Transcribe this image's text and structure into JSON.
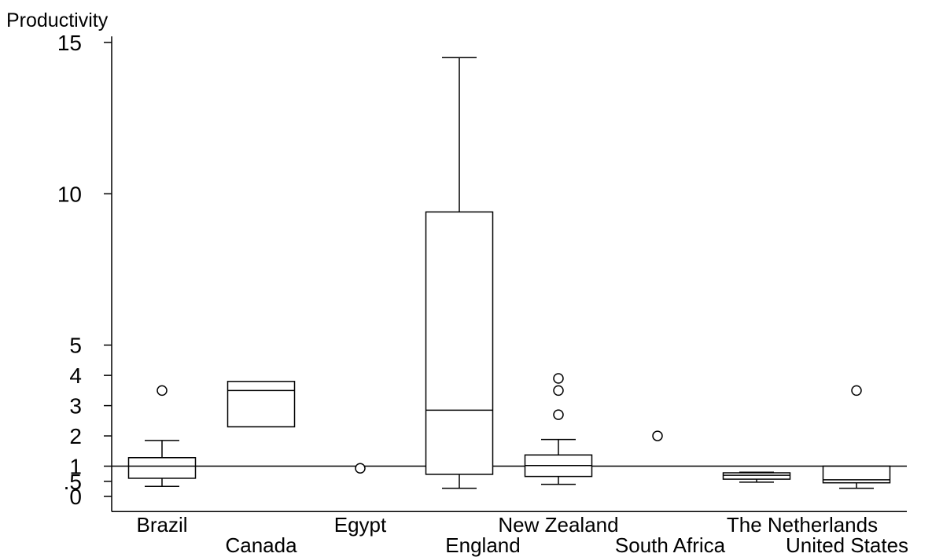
{
  "chart_data": {
    "type": "box",
    "ylabel": "Productivity",
    "yticks": [
      {
        "value": 0,
        "label": "0"
      },
      {
        "value": 0.5,
        "label": ".5"
      },
      {
        "value": 1,
        "label": "1"
      },
      {
        "value": 2,
        "label": "2"
      },
      {
        "value": 3,
        "label": "3"
      },
      {
        "value": 4,
        "label": "4"
      },
      {
        "value": 5,
        "label": "5"
      },
      {
        "value": 10,
        "label": "10"
      },
      {
        "value": 15,
        "label": "15"
      }
    ],
    "ylim": [
      -0.5,
      15.2
    ],
    "reference_line": 1,
    "categories": [
      "Brazil",
      "Canada",
      "Egypt",
      "England",
      "New Zealand",
      "South Africa",
      "The Netherlands",
      "United States"
    ],
    "boxes": [
      {
        "category": "Brazil",
        "whisker_low": 0.33,
        "q1": 0.6,
        "median": 1.0,
        "q3": 1.28,
        "whisker_high": 1.85,
        "outliers": [
          3.5
        ]
      },
      {
        "category": "Canada",
        "whisker_low": null,
        "q1": 2.3,
        "median": 3.5,
        "q3": 3.8,
        "whisker_high": null,
        "outliers": []
      },
      {
        "category": "Egypt",
        "whisker_low": null,
        "q1": null,
        "median": null,
        "q3": null,
        "whisker_high": null,
        "outliers": [
          0.93
        ]
      },
      {
        "category": "England",
        "whisker_low": 0.27,
        "q1": 0.73,
        "median": 2.85,
        "q3": 9.4,
        "whisker_high": 14.5,
        "outliers": []
      },
      {
        "category": "New Zealand",
        "whisker_low": 0.4,
        "q1": 0.66,
        "median": 1.02,
        "q3": 1.37,
        "whisker_high": 1.88,
        "outliers": [
          2.7,
          3.5,
          3.9
        ]
      },
      {
        "category": "South Africa",
        "whisker_low": null,
        "q1": null,
        "median": null,
        "q3": null,
        "whisker_high": null,
        "outliers": [
          2.0
        ]
      },
      {
        "category": "The Netherlands",
        "whisker_low": 0.47,
        "q1": 0.57,
        "median": 0.7,
        "q3": 0.78,
        "whisker_high": 0.8,
        "outliers": []
      },
      {
        "category": "United States",
        "whisker_low": 0.27,
        "q1": 0.45,
        "median": 0.55,
        "q3": 1.0,
        "whisker_high": null,
        "outliers": [
          3.5
        ]
      }
    ]
  }
}
